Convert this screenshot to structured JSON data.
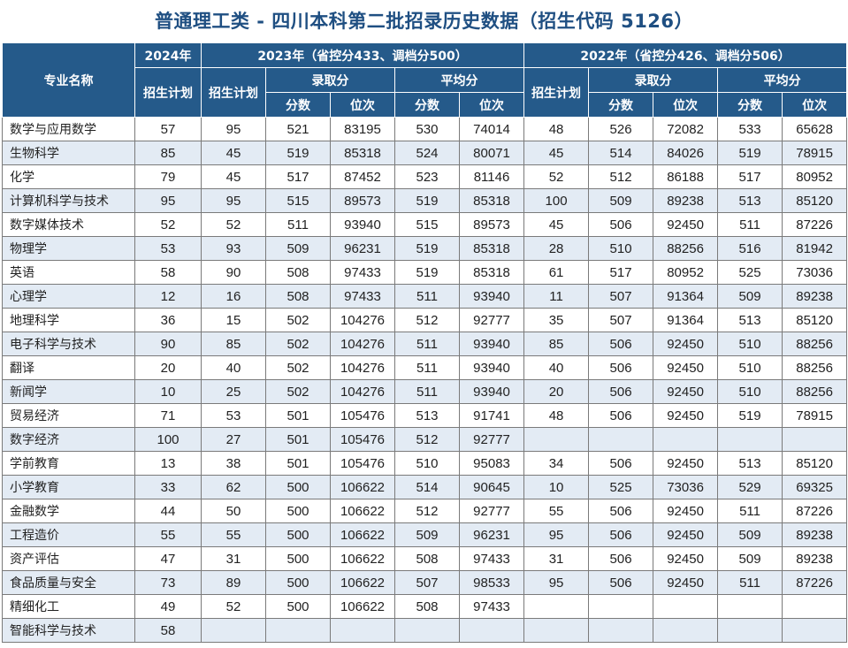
{
  "title": "普通理工类 - 四川本科第二批招录历史数据（招生代码 5126）",
  "header": {
    "major": "专业名称",
    "y2024": "2024年",
    "y2023": "2023年（省控分433、调档分500）",
    "y2022": "2022年（省控分426、调档分506）",
    "plan": "招生计划",
    "plan2023": "招生计划",
    "plan2022": "招生计划",
    "admit": "录取分",
    "avg": "平均分",
    "admit2": "录取分",
    "avg2": "平均分",
    "score": "分数",
    "rank": "位次"
  },
  "rows": [
    [
      "数学与应用数学",
      "57",
      "95",
      "521",
      "83195",
      "530",
      "74014",
      "48",
      "526",
      "72082",
      "533",
      "65628"
    ],
    [
      "生物科学",
      "85",
      "45",
      "519",
      "85318",
      "524",
      "80071",
      "45",
      "514",
      "84026",
      "519",
      "78915"
    ],
    [
      "化学",
      "79",
      "45",
      "517",
      "87452",
      "523",
      "81146",
      "52",
      "512",
      "86188",
      "517",
      "80952"
    ],
    [
      "计算机科学与技术",
      "95",
      "95",
      "515",
      "89573",
      "519",
      "85318",
      "100",
      "509",
      "89238",
      "513",
      "85120"
    ],
    [
      "数字媒体技术",
      "52",
      "52",
      "511",
      "93940",
      "515",
      "89573",
      "45",
      "506",
      "92450",
      "511",
      "87226"
    ],
    [
      "物理学",
      "53",
      "93",
      "509",
      "96231",
      "519",
      "85318",
      "28",
      "510",
      "88256",
      "516",
      "81942"
    ],
    [
      "英语",
      "58",
      "90",
      "508",
      "97433",
      "519",
      "85318",
      "61",
      "517",
      "80952",
      "525",
      "73036"
    ],
    [
      "心理学",
      "12",
      "16",
      "508",
      "97433",
      "511",
      "93940",
      "11",
      "507",
      "91364",
      "509",
      "89238"
    ],
    [
      "地理科学",
      "36",
      "15",
      "502",
      "104276",
      "512",
      "92777",
      "35",
      "507",
      "91364",
      "513",
      "85120"
    ],
    [
      "电子科学与技术",
      "90",
      "85",
      "502",
      "104276",
      "511",
      "93940",
      "85",
      "506",
      "92450",
      "510",
      "88256"
    ],
    [
      "翻译",
      "20",
      "40",
      "502",
      "104276",
      "511",
      "93940",
      "40",
      "506",
      "92450",
      "510",
      "88256"
    ],
    [
      "新闻学",
      "10",
      "25",
      "502",
      "104276",
      "511",
      "93940",
      "20",
      "506",
      "92450",
      "510",
      "88256"
    ],
    [
      "贸易经济",
      "71",
      "53",
      "501",
      "105476",
      "513",
      "91741",
      "48",
      "506",
      "92450",
      "519",
      "78915"
    ],
    [
      "数字经济",
      "100",
      "27",
      "501",
      "105476",
      "512",
      "92777",
      "",
      "",
      "",
      "",
      ""
    ],
    [
      "学前教育",
      "13",
      "38",
      "501",
      "105476",
      "510",
      "95083",
      "34",
      "506",
      "92450",
      "513",
      "85120"
    ],
    [
      "小学教育",
      "33",
      "62",
      "500",
      "106622",
      "514",
      "90645",
      "10",
      "525",
      "73036",
      "529",
      "69325"
    ],
    [
      "金融数学",
      "44",
      "50",
      "500",
      "106622",
      "512",
      "92777",
      "55",
      "506",
      "92450",
      "511",
      "87226"
    ],
    [
      "工程造价",
      "55",
      "55",
      "500",
      "106622",
      "509",
      "96231",
      "95",
      "506",
      "92450",
      "509",
      "89238"
    ],
    [
      "资产评估",
      "47",
      "31",
      "500",
      "106622",
      "508",
      "97433",
      "31",
      "506",
      "92450",
      "509",
      "89238"
    ],
    [
      "食品质量与安全",
      "73",
      "89",
      "500",
      "106622",
      "507",
      "98533",
      "95",
      "506",
      "92450",
      "511",
      "87226"
    ],
    [
      "精细化工",
      "49",
      "52",
      "500",
      "106622",
      "508",
      "97433",
      "",
      "",
      "",
      "",
      ""
    ],
    [
      "智能科学与技术",
      "58",
      "",
      "",
      "",
      "",
      "",
      "",
      "",
      "",
      "",
      ""
    ]
  ]
}
